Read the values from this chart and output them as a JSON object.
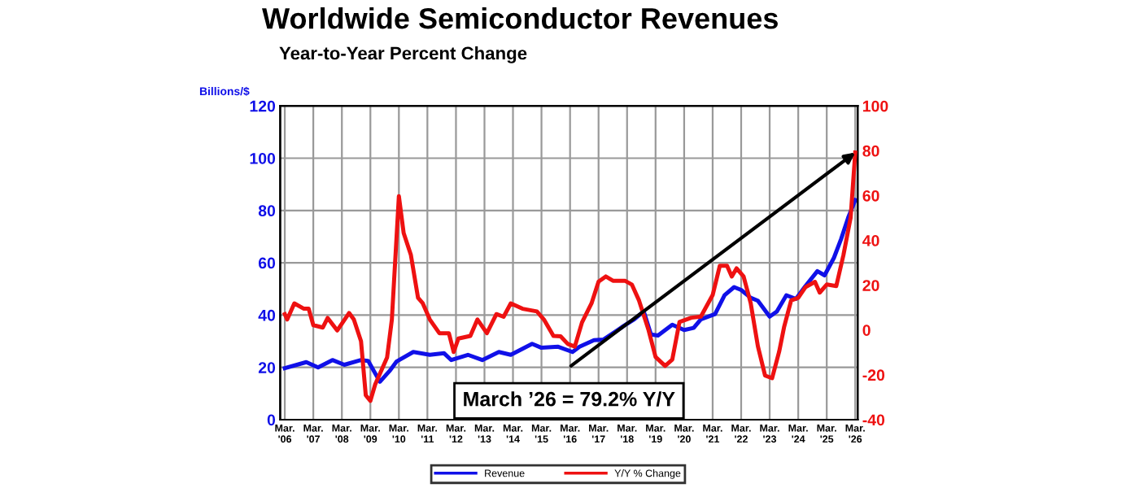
{
  "chart_data": {
    "type": "line",
    "title": "Worldwide Semiconductor Revenues",
    "subtitle": "Year-to-Year Percent Change",
    "ylabel": "Billions/$",
    "annotations": [
      "March ’26 = 79.2% Y/Y"
    ],
    "xlim": [
      "2006-01",
      "2026-04"
    ],
    "xticks": [
      {
        "value": "2006-03",
        "label": "Mar.\n'06"
      },
      {
        "value": "2007-03",
        "label": "Mar.\n'07"
      },
      {
        "value": "2008-03",
        "label": "Mar.\n'08"
      },
      {
        "value": "2009-03",
        "label": "Mar.\n'09"
      },
      {
        "value": "2010-03",
        "label": "Mar.\n'10"
      },
      {
        "value": "2011-03",
        "label": "Mar.\n'11"
      },
      {
        "value": "2012-03",
        "label": "Mar.\n'12"
      },
      {
        "value": "2013-03",
        "label": "Mar.\n'13"
      },
      {
        "value": "2014-03",
        "label": "Mar.\n'14"
      },
      {
        "value": "2015-03",
        "label": "Mar.\n'15"
      },
      {
        "value": "2016-03",
        "label": "Mar.\n'16"
      },
      {
        "value": "2017-03",
        "label": "Mar.\n'17"
      },
      {
        "value": "2018-03",
        "label": "Mar.\n'18"
      },
      {
        "value": "2019-03",
        "label": "Mar.\n'19"
      },
      {
        "value": "2020-03",
        "label": "Mar.\n'20"
      },
      {
        "value": "2021-03",
        "label": "Mar.\n'21"
      },
      {
        "value": "2022-03",
        "label": "Mar.\n'22"
      },
      {
        "value": "2023-03",
        "label": "Mar.\n'23"
      },
      {
        "value": "2024-03",
        "label": "Mar.\n'24"
      },
      {
        "value": "2025-03",
        "label": "Mar.\n'25"
      },
      {
        "value": "2026-03",
        "label": "Mar.\n'26"
      }
    ],
    "ylim": [
      0,
      120
    ],
    "yticks": [
      0,
      20,
      40,
      60,
      80,
      100,
      120
    ],
    "y2lim": [
      -40,
      100
    ],
    "y2ticks": [
      -40,
      -20,
      0,
      20,
      40,
      60,
      80,
      100
    ],
    "grid": true,
    "legend": "bottom",
    "line_style": "solid",
    "series": [
      {
        "name": "Revenue",
        "color": "#1010e8",
        "axis": "y",
        "x": [
          "2006-03",
          "2006-12",
          "2007-05",
          "2007-11",
          "2008-04",
          "2008-11",
          "2009-02",
          "2009-07",
          "2009-11",
          "2010-02",
          "2010-09",
          "2011-04",
          "2011-10",
          "2012-01",
          "2012-08",
          "2013-02",
          "2013-09",
          "2014-02",
          "2014-11",
          "2015-03",
          "2015-10",
          "2016-04",
          "2016-07",
          "2017-01",
          "2017-05",
          "2017-11",
          "2018-03",
          "2018-06",
          "2018-10",
          "2019-01",
          "2019-04",
          "2019-10",
          "2020-03",
          "2020-07",
          "2020-10",
          "2021-04",
          "2021-08",
          "2021-12",
          "2022-03",
          "2022-07",
          "2022-10",
          "2023-03",
          "2023-06",
          "2023-10",
          "2024-02",
          "2024-06",
          "2024-11",
          "2025-02",
          "2025-06",
          "2025-09",
          "2025-12",
          "2026-03"
        ],
        "values": [
          19.7,
          22,
          20,
          22.8,
          21,
          22.8,
          22.5,
          14.5,
          18.6,
          22.3,
          25.9,
          24.8,
          25.4,
          22.8,
          24.8,
          22.8,
          25.9,
          24.8,
          29,
          27.5,
          27.9,
          25.9,
          27.9,
          30.4,
          30.6,
          34.3,
          36.7,
          38.4,
          41.4,
          32.6,
          32.2,
          36.3,
          34.3,
          35.1,
          38.4,
          40.4,
          47.6,
          50.7,
          49.6,
          46.6,
          45.5,
          39.4,
          41.4,
          47.6,
          46.2,
          51.1,
          56.8,
          55.2,
          61.9,
          69.1,
          77.3,
          84
        ]
      },
      {
        "name": "Y/Y % Change",
        "color": "#ee1111",
        "axis": "y2",
        "x": [
          "2006-03",
          "2006-04",
          "2006-07",
          "2006-11",
          "2007-01",
          "2007-03",
          "2007-07",
          "2007-09",
          "2008-01",
          "2008-06",
          "2008-08",
          "2008-11",
          "2009-01",
          "2009-03",
          "2009-05",
          "2009-10",
          "2009-12",
          "2010-03",
          "2010-05",
          "2010-08",
          "2010-11",
          "2011-01",
          "2011-04",
          "2011-08",
          "2011-12",
          "2012-02",
          "2012-04",
          "2012-09",
          "2012-12",
          "2013-04",
          "2013-08",
          "2013-11",
          "2014-02",
          "2014-07",
          "2015-01",
          "2015-04",
          "2015-08",
          "2015-11",
          "2016-02",
          "2016-05",
          "2016-08",
          "2016-12",
          "2017-03",
          "2017-06",
          "2017-09",
          "2018-02",
          "2018-05",
          "2018-08",
          "2018-12",
          "2019-03",
          "2019-07",
          "2019-10",
          "2020-01",
          "2020-06",
          "2020-10",
          "2021-03",
          "2021-06",
          "2021-09",
          "2021-11",
          "2022-01",
          "2022-04",
          "2022-07",
          "2022-10",
          "2023-01",
          "2023-04",
          "2023-07",
          "2023-09",
          "2023-12",
          "2024-03",
          "2024-06",
          "2024-10",
          "2024-12",
          "2025-03",
          "2025-07",
          "2025-10",
          "2026-01",
          "2026-03"
        ],
        "values": [
          7.1,
          4.7,
          11.9,
          9.5,
          9.5,
          2.2,
          1.1,
          5.4,
          -0.2,
          7.6,
          4.7,
          -5,
          -29.1,
          -31.6,
          -24.3,
          -12.2,
          4.7,
          59.7,
          43.3,
          33.6,
          14.4,
          11.9,
          4.7,
          -1.4,
          -1.4,
          -9.8,
          -3.8,
          -2.6,
          4.7,
          -1.4,
          7.1,
          5.9,
          11.9,
          9.5,
          8.3,
          4.7,
          -2.6,
          -2.8,
          -6.2,
          -7.4,
          3.4,
          11.9,
          21.6,
          23.9,
          22,
          22,
          20.3,
          13.2,
          0,
          -12,
          -16,
          -13.2,
          3.6,
          5.5,
          6,
          15.6,
          28.7,
          28.7,
          23.9,
          27.5,
          23.9,
          12,
          -7.2,
          -20.3,
          -21.5,
          -9.6,
          1.2,
          13.2,
          14.4,
          19.1,
          21.5,
          16.7,
          20.3,
          19.6,
          33.5,
          50.2,
          79.2
        ]
      }
    ]
  }
}
